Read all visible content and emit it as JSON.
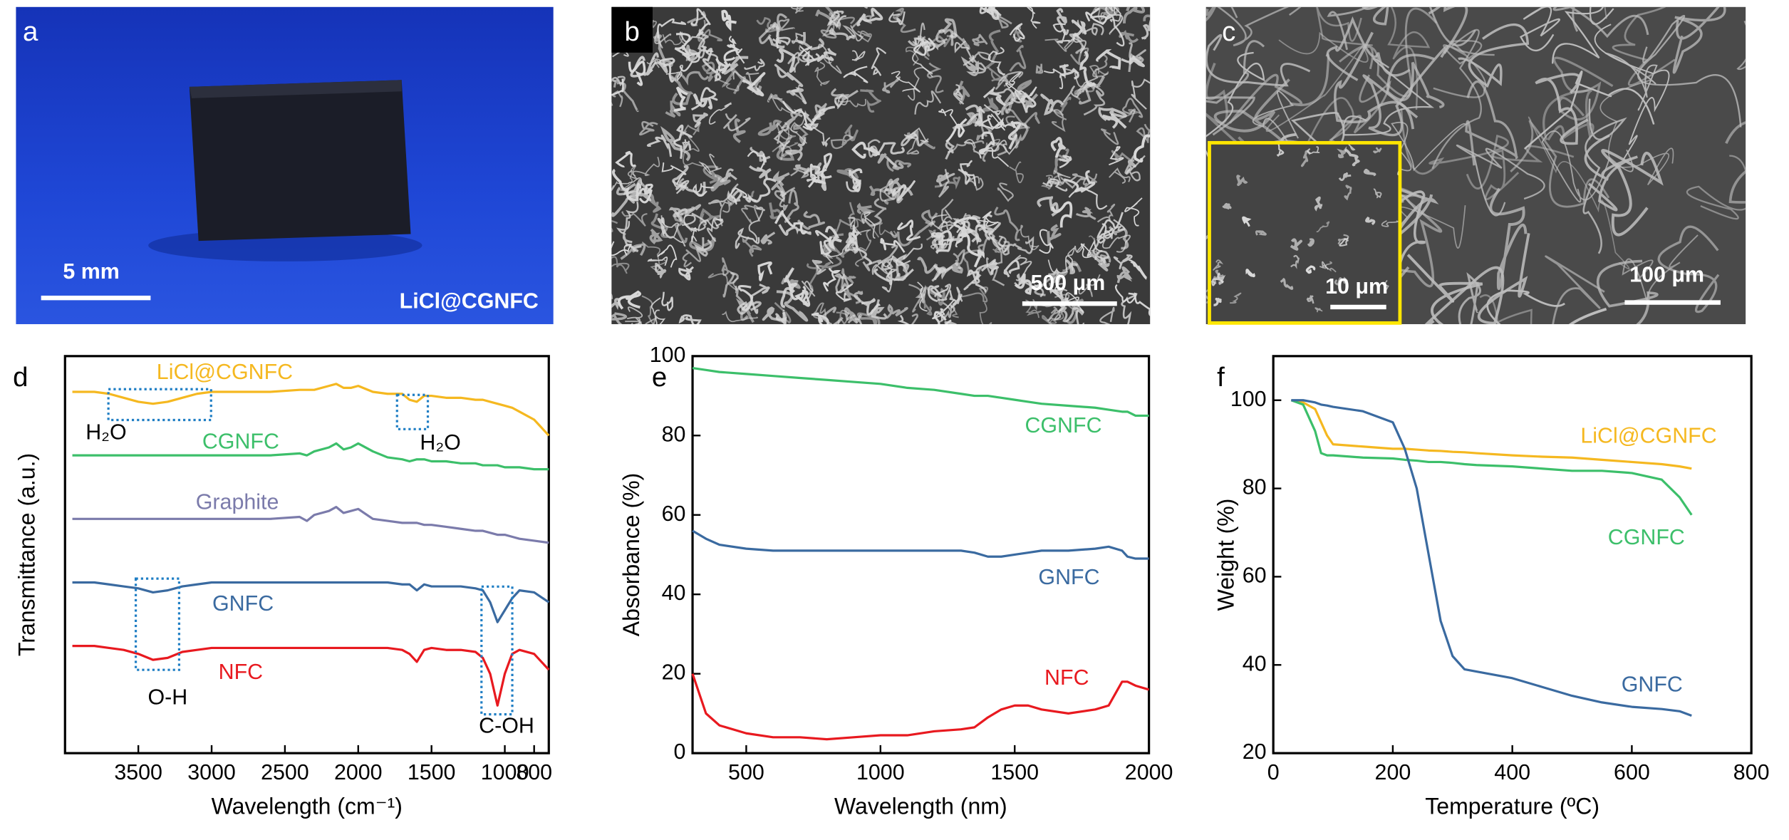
{
  "images": [
    {
      "label": "a",
      "scale_bar": "5 mm",
      "caption": "LiCl@CGNFC"
    },
    {
      "label": "b",
      "scale_bar": "500 μm"
    },
    {
      "label": "c",
      "scale_bar": "100 μm",
      "inset_scale_bar": "10 μm"
    }
  ],
  "chart_data": [
    {
      "type": "line",
      "panel": "d",
      "xlabel": "Wavelength (cm⁻¹)",
      "ylabel": "Transmittance (a.u.)",
      "xlim": [
        4000,
        700
      ],
      "xticks": [
        3500,
        3000,
        2500,
        2000,
        1500,
        1000,
        800
      ],
      "ylim": [
        0,
        100
      ],
      "annotations": [
        "H₂O",
        "H₂O",
        "O-H",
        "C-OH"
      ],
      "x": [
        3950,
        3800,
        3700,
        3600,
        3500,
        3400,
        3300,
        3200,
        3100,
        3000,
        2800,
        2600,
        2400,
        2350,
        2300,
        2200,
        2150,
        2100,
        2050,
        2000,
        1900,
        1800,
        1700,
        1650,
        1600,
        1550,
        1500,
        1400,
        1300,
        1200,
        1150,
        1100,
        1050,
        1000,
        950,
        900,
        800,
        700
      ],
      "series": [
        {
          "name": "LiCl@CGNFC",
          "color": "#f5b820",
          "values": [
            91,
            91,
            90.5,
            89.5,
            88.5,
            88,
            88.5,
            89.5,
            90.5,
            91,
            91,
            91,
            91.5,
            91.5,
            91.5,
            92.5,
            93,
            92,
            92,
            92.5,
            91,
            90.5,
            90.5,
            89,
            88.5,
            90,
            90,
            89.5,
            89.5,
            89,
            89,
            88.5,
            88,
            87.5,
            87,
            86,
            84,
            80
          ]
        },
        {
          "name": "CGNFC",
          "color": "#3cbf6a",
          "values": [
            75,
            75,
            75,
            75,
            75,
            75,
            75,
            75,
            75,
            75,
            75,
            75,
            75.5,
            75,
            76,
            77,
            78,
            76.5,
            77,
            78,
            76,
            74.5,
            74,
            73.5,
            74,
            74,
            73.5,
            73.5,
            73,
            73,
            72.5,
            72.5,
            72.5,
            72,
            72,
            72,
            71.5,
            71.5
          ]
        },
        {
          "name": "Graphite",
          "color": "#7b7bab",
          "values": [
            59,
            59,
            59,
            59,
            59,
            59,
            59,
            59,
            59,
            59,
            59,
            59,
            59.5,
            58.5,
            60,
            61,
            62,
            60.5,
            61,
            61.5,
            59,
            58.5,
            58,
            58,
            58,
            57.5,
            57.5,
            57,
            56.5,
            56,
            56,
            55.5,
            55,
            55,
            54.5,
            54,
            53.5,
            53
          ]
        },
        {
          "name": "GNFC",
          "color": "#3a6aa0",
          "values": [
            43,
            43,
            42.5,
            42,
            41.5,
            40.5,
            41,
            42,
            42.5,
            43,
            43,
            43,
            43,
            43,
            43,
            43,
            43,
            43,
            43,
            43,
            43,
            43,
            42.5,
            42.5,
            41,
            42.5,
            42,
            42,
            42,
            41.5,
            41,
            38,
            33,
            36,
            39,
            41,
            40.5,
            38
          ]
        },
        {
          "name": "NFC",
          "color": "#e8191f",
          "values": [
            27,
            27,
            26.5,
            26,
            25,
            23.5,
            24,
            25.5,
            26,
            26.5,
            26.5,
            26.5,
            26.5,
            26.5,
            26.5,
            26.5,
            26.5,
            26.5,
            26.5,
            26.5,
            26.5,
            26.5,
            26,
            25,
            23,
            26,
            26.5,
            26,
            26,
            25.5,
            24,
            20,
            12,
            20,
            25,
            26,
            25,
            21
          ]
        }
      ]
    },
    {
      "type": "line",
      "panel": "e",
      "xlabel": "Wavelength (nm)",
      "ylabel": "Absorbance (%)",
      "xlim": [
        300,
        2000
      ],
      "xticks": [
        500,
        1000,
        1500,
        2000
      ],
      "ylim": [
        0,
        100
      ],
      "yticks": [
        0,
        20,
        40,
        60,
        80,
        100
      ],
      "x": [
        300,
        350,
        400,
        500,
        600,
        700,
        800,
        900,
        1000,
        1100,
        1200,
        1300,
        1350,
        1400,
        1450,
        1500,
        1550,
        1600,
        1700,
        1800,
        1850,
        1900,
        1920,
        1950,
        2000
      ],
      "series": [
        {
          "name": "CGNFC",
          "color": "#3cbf6a",
          "values": [
            97,
            96.5,
            96,
            95.5,
            95,
            94.5,
            94,
            93.5,
            93,
            92,
            91.5,
            90.5,
            90,
            90,
            89.5,
            89,
            88.5,
            88,
            87.5,
            87,
            86.5,
            86,
            86,
            85,
            85
          ]
        },
        {
          "name": "GNFC",
          "color": "#3a6aa0",
          "values": [
            56,
            54,
            52.5,
            51.5,
            51,
            51,
            51,
            51,
            51,
            51,
            51,
            51,
            50.5,
            49.5,
            49.5,
            50,
            50.5,
            51,
            51,
            51.5,
            52,
            51,
            49.5,
            49,
            49
          ]
        },
        {
          "name": "NFC",
          "color": "#e8191f",
          "values": [
            20,
            10,
            7,
            5,
            4,
            4,
            3.5,
            4,
            4.5,
            4.5,
            5.5,
            6,
            6.5,
            9,
            11,
            12,
            12,
            11,
            10,
            11,
            12,
            18,
            18,
            17,
            16
          ]
        }
      ]
    },
    {
      "type": "line",
      "panel": "f",
      "xlabel": "Temperature (ºC)",
      "ylabel": "Weight (%)",
      "xlim": [
        0,
        800
      ],
      "xticks": [
        0,
        200,
        400,
        600,
        800
      ],
      "ylim": [
        20,
        110
      ],
      "yticks": [
        20,
        40,
        60,
        80,
        100
      ],
      "x": [
        30,
        50,
        70,
        80,
        90,
        100,
        150,
        200,
        220,
        240,
        260,
        280,
        300,
        320,
        340,
        400,
        450,
        500,
        550,
        600,
        650,
        680,
        700
      ],
      "series": [
        {
          "name": "LiCl@CGNFC",
          "color": "#f5b820",
          "values": [
            100,
            99.5,
            98,
            95,
            92,
            90,
            89.5,
            89,
            89,
            88.8,
            88.6,
            88.5,
            88.3,
            88.2,
            88,
            87.5,
            87.2,
            87,
            86.5,
            86,
            85.5,
            85,
            84.5
          ]
        },
        {
          "name": "CGNFC",
          "color": "#3cbf6a",
          "values": [
            100,
            99,
            93,
            88,
            87.5,
            87.5,
            87,
            86.8,
            86.5,
            86.3,
            86,
            86,
            85.8,
            85.5,
            85.3,
            85,
            84.5,
            84,
            84,
            83.5,
            82,
            78,
            74
          ]
        },
        {
          "name": "GNFC",
          "color": "#3a6aa0",
          "values": [
            100,
            100,
            99.5,
            99,
            98.8,
            98.5,
            97.5,
            95,
            89,
            80,
            65,
            50,
            42,
            39,
            38.5,
            37,
            35,
            33,
            31.5,
            30.5,
            30,
            29.5,
            28.5
          ]
        }
      ]
    }
  ]
}
